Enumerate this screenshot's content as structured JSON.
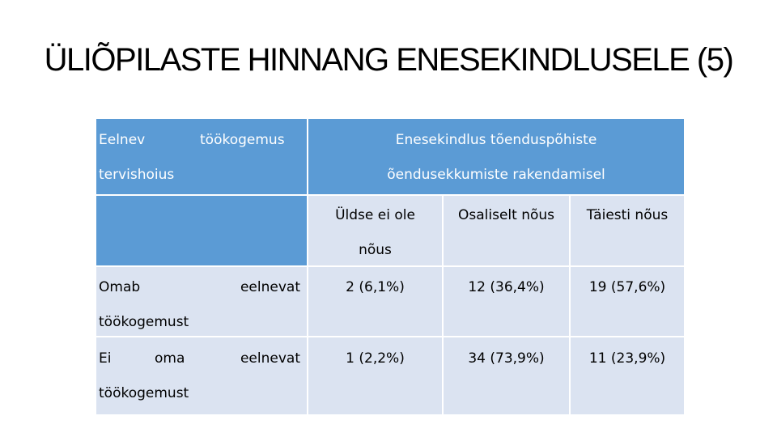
{
  "slide": {
    "title": "ÜLIÕPILASTE HINNANG ENESEKINDLUSELE (5)"
  },
  "table": {
    "header_left": {
      "word1": "Eelnev",
      "word2": "töökogemus",
      "word3": "tervishoius"
    },
    "header_right": {
      "line1": "Enesekindlus tõenduspõhiste",
      "line2": "õendusekkumiste rakendamisel"
    },
    "columns": {
      "col1_line1": "Üldse ei ole",
      "col1_line2": "nõus",
      "col2": "Osaliselt nõus",
      "col3": "Täiesti nõus"
    },
    "rows": [
      {
        "label_w1": "Omab",
        "label_w2": "eelnevat",
        "label_w3": "töökogemust",
        "values": [
          "2 (6,1%)",
          "12 (36,4%)",
          "19 (57,6%)"
        ]
      },
      {
        "label_w1": "Ei",
        "label_w2": "oma",
        "label_w3": "eelnevat",
        "label_w4": "töökogemust",
        "values": [
          "1 (2,2%)",
          "34 (73,9%)",
          "11 (23,9%)"
        ]
      }
    ]
  },
  "colors": {
    "header_blue": "#5b9bd5",
    "row_light": "#dbe3f1"
  }
}
